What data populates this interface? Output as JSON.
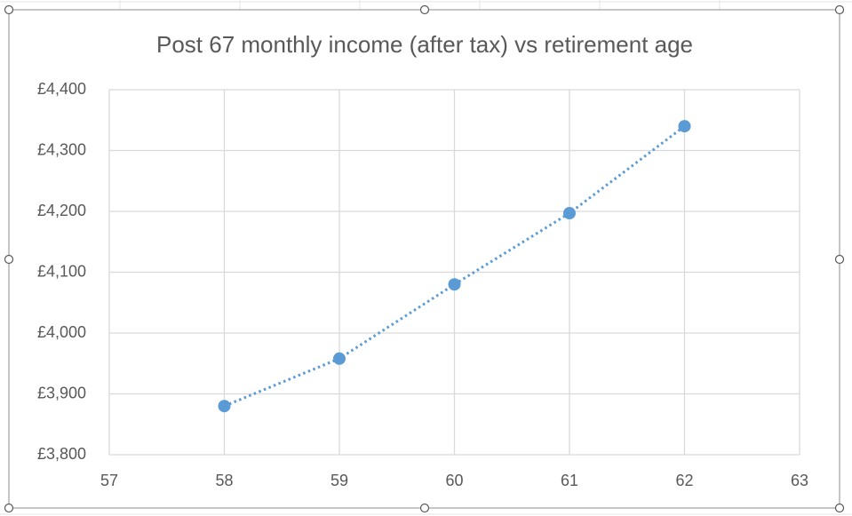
{
  "chart_data": {
    "type": "scatter",
    "title": "Post 67 monthly income (after tax) vs retirement age",
    "series": [
      {
        "color": "#5b9bd5",
        "x": [
          58,
          59,
          60,
          61,
          62
        ],
        "values": [
          3880,
          3958,
          4080,
          4197,
          4340
        ]
      }
    ],
    "line_style": "dotted",
    "xlim": [
      57,
      63
    ],
    "xticks": [
      57,
      58,
      59,
      60,
      61,
      62,
      63
    ],
    "ylim": [
      3800,
      4400
    ],
    "yticks": [
      {
        "value": 3800,
        "label": "£3,800"
      },
      {
        "value": 3900,
        "label": "£3,900"
      },
      {
        "value": 4000,
        "label": "£4,000"
      },
      {
        "value": 4100,
        "label": "£4,100"
      },
      {
        "value": 4200,
        "label": "£4,200"
      },
      {
        "value": 4300,
        "label": "£4,300"
      },
      {
        "value": 4400,
        "label": "£4,400"
      }
    ],
    "grid": true
  }
}
